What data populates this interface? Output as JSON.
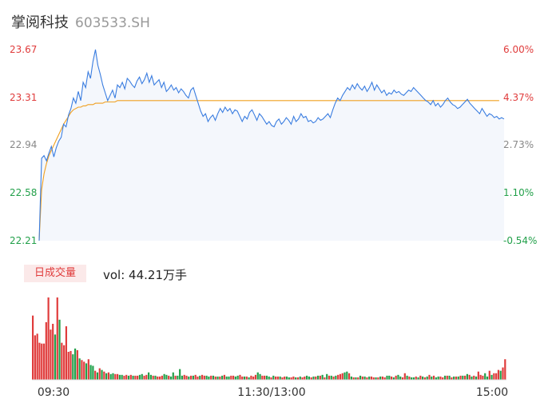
{
  "header": {
    "name": "掌阅科技",
    "code": "603533.SH"
  },
  "volume": {
    "tag": "日成交量",
    "text": "vol: 44.21万手"
  },
  "colors": {
    "price": "#3a7de0",
    "avg": "#f0a020",
    "up": "#e03c3c",
    "down": "#22a04a",
    "area": "#f4f7fc"
  },
  "chart_data": [
    {
      "type": "line",
      "series": [
        {
          "values": [
            22.21,
            22.84,
            22.86,
            22.82,
            22.88,
            22.93,
            22.85,
            22.92,
            22.97,
            23.0,
            23.1,
            23.08,
            23.17,
            23.22,
            23.3,
            23.26,
            23.35,
            23.28,
            23.42,
            23.38,
            23.5,
            23.45,
            23.58,
            23.67,
            23.55,
            23.48,
            23.4,
            23.34,
            23.28,
            23.32,
            23.36,
            23.3,
            23.4,
            23.38,
            23.42,
            23.37,
            23.45,
            23.43,
            23.4,
            23.38,
            23.43,
            23.46,
            23.41,
            23.44,
            23.49,
            23.42,
            23.47,
            23.4,
            23.42,
            23.44,
            23.38,
            23.42,
            23.35,
            23.37,
            23.4,
            23.36,
            23.38,
            23.34,
            23.37,
            23.35,
            23.32,
            23.3,
            23.36,
            23.38,
            23.32,
            23.26,
            23.2,
            23.16,
            23.18,
            23.12,
            23.15,
            23.17,
            23.13,
            23.18,
            23.22,
            23.19,
            23.23,
            23.2,
            23.22,
            23.18,
            23.21,
            23.2,
            23.16,
            23.12,
            23.16,
            23.14,
            23.19,
            23.21,
            23.17,
            23.13,
            23.18,
            23.16,
            23.13,
            23.1,
            23.12,
            23.09,
            23.08,
            23.12,
            23.14,
            23.1,
            23.12,
            23.15,
            23.13,
            23.1,
            23.16,
            23.12,
            23.14,
            23.18,
            23.15,
            23.16,
            23.12,
            23.13,
            23.11,
            23.12,
            23.15,
            23.13,
            23.14,
            23.16,
            23.18,
            23.15,
            23.21,
            23.26,
            23.3,
            23.28,
            23.32,
            23.35,
            23.38,
            23.36,
            23.4,
            23.37,
            23.41,
            23.38,
            23.36,
            23.39,
            23.35,
            23.38,
            23.42,
            23.36,
            23.4,
            23.37,
            23.34,
            23.36,
            23.32,
            23.34,
            23.33,
            23.36,
            23.34,
            23.35,
            23.33,
            23.32,
            23.34,
            23.36,
            23.35,
            23.38,
            23.36,
            23.34,
            23.32,
            23.3,
            23.28,
            23.27,
            23.25,
            23.28,
            23.24,
            23.26,
            23.23,
            23.25,
            23.28,
            23.3,
            23.27,
            23.25,
            23.24,
            23.22,
            23.23,
            23.25,
            23.27,
            23.29,
            23.26,
            23.24,
            23.22,
            23.2,
            23.18,
            23.22,
            23.19,
            23.16,
            23.18,
            23.17,
            23.15,
            23.16,
            23.14,
            23.15,
            23.14
          ]
        },
        {
          "values": [
            22.21,
            22.6,
            22.72,
            22.8,
            22.86,
            22.9,
            22.94,
            22.98,
            23.02,
            23.06,
            23.1,
            23.13,
            23.16,
            23.19,
            23.21,
            23.22,
            23.23,
            23.23,
            23.24,
            23.24,
            23.25,
            23.25,
            23.25,
            23.26,
            23.26,
            23.26,
            23.26,
            23.27,
            23.27,
            23.27,
            23.27,
            23.27,
            23.28,
            23.28,
            23.28,
            23.28,
            23.28,
            23.28,
            23.28,
            23.28,
            23.28,
            23.28,
            23.28,
            23.28,
            23.28,
            23.28,
            23.28,
            23.28,
            23.28,
            23.28,
            23.28,
            23.28,
            23.28,
            23.28,
            23.28,
            23.28,
            23.28,
            23.28,
            23.28,
            23.28,
            23.28,
            23.28,
            23.28,
            23.28,
            23.28,
            23.28,
            23.28,
            23.28,
            23.28,
            23.28,
            23.28,
            23.28,
            23.28,
            23.28,
            23.28,
            23.28,
            23.28,
            23.28,
            23.28,
            23.28,
            23.28,
            23.28,
            23.28,
            23.28,
            23.28,
            23.28,
            23.28,
            23.28,
            23.28,
            23.28,
            23.28,
            23.28,
            23.28,
            23.28,
            23.28,
            23.28,
            23.28,
            23.28,
            23.28,
            23.28,
            23.28,
            23.28,
            23.28,
            23.28,
            23.28,
            23.28,
            23.28,
            23.28,
            23.28,
            23.28,
            23.28,
            23.28,
            23.28,
            23.28,
            23.28,
            23.28,
            23.28,
            23.28,
            23.28,
            23.28,
            23.28,
            23.28,
            23.28,
            23.28,
            23.28,
            23.28,
            23.28,
            23.28,
            23.28,
            23.28,
            23.28,
            23.28,
            23.28,
            23.28,
            23.28,
            23.28,
            23.28,
            23.28,
            23.28,
            23.28,
            23.28,
            23.28,
            23.28,
            23.28,
            23.28,
            23.28,
            23.28,
            23.28,
            23.28,
            23.28,
            23.28,
            23.28,
            23.28,
            23.28,
            23.28,
            23.28,
            23.28,
            23.28,
            23.28,
            23.28,
            23.28,
            23.28,
            23.28,
            23.28,
            23.28,
            23.28,
            23.28,
            23.28,
            23.28,
            23.28,
            23.28,
            23.28,
            23.28,
            23.28,
            23.28,
            23.28,
            23.28,
            23.28,
            23.28,
            23.28,
            23.28,
            23.28,
            23.28,
            23.28,
            23.28,
            23.28,
            23.28,
            23.28,
            23.28
          ]
        }
      ],
      "ylim": [
        22.21,
        23.67
      ],
      "y_ticks_left": [
        "23.67",
        "23.31",
        "22.94",
        "22.58",
        "22.21"
      ],
      "y_ticks_right": [
        "6.00%",
        "4.37%",
        "2.73%",
        "1.10%",
        "-0.54%"
      ],
      "grid": false
    },
    {
      "type": "bar",
      "x_ticks": [
        "09:30",
        "11:30/13:00",
        "15:00"
      ],
      "values": [
        78,
        54,
        56,
        45,
        44,
        44,
        70,
        100,
        61,
        68,
        55,
        100,
        73,
        45,
        42,
        65,
        34,
        35,
        31,
        38,
        36,
        26,
        24,
        22,
        20,
        25,
        18,
        17,
        11,
        9,
        14,
        12,
        10,
        8,
        9,
        7,
        8,
        7,
        7,
        6,
        6,
        5,
        6,
        5,
        6,
        5,
        5,
        5,
        6,
        7,
        5,
        6,
        9,
        6,
        5,
        5,
        4,
        4,
        5,
        7,
        6,
        5,
        4,
        9,
        5,
        5,
        13,
        5,
        6,
        5,
        4,
        5,
        5,
        6,
        4,
        5,
        6,
        5,
        5,
        4,
        5,
        5,
        4,
        4,
        4,
        5,
        6,
        4,
        4,
        5,
        5,
        4,
        5,
        6,
        4,
        4,
        4,
        3,
        5,
        4,
        6,
        9,
        7,
        5,
        5,
        5,
        4,
        3,
        5,
        4,
        4,
        4,
        3,
        4,
        4,
        3,
        3,
        4,
        3,
        3,
        4,
        3,
        4,
        5,
        4,
        3,
        4,
        4,
        5,
        5,
        6,
        3,
        7,
        5,
        5,
        4,
        5,
        6,
        7,
        8,
        9,
        10,
        8,
        4,
        3,
        3,
        3,
        5,
        4,
        4,
        3,
        4,
        4,
        3,
        3,
        3,
        4,
        4,
        3,
        5,
        5,
        4,
        3,
        5,
        6,
        4,
        3,
        8,
        5,
        4,
        3,
        3,
        4,
        3,
        5,
        4,
        3,
        4,
        6,
        4,
        5,
        3,
        4,
        4,
        3,
        5,
        5,
        5,
        3,
        4,
        4,
        4,
        5,
        5,
        5,
        7,
        6,
        4,
        5,
        4,
        10,
        6,
        5,
        8,
        4,
        11,
        6,
        8,
        8,
        12,
        11,
        15,
        25
      ],
      "colors": [
        "up",
        "up",
        "up",
        "up",
        "up",
        "up",
        "up",
        "up",
        "up",
        "up",
        "down",
        "up",
        "down",
        "up",
        "up",
        "up",
        "up",
        "up",
        "down",
        "down",
        "up",
        "down",
        "up",
        "up",
        "down",
        "up",
        "down",
        "down",
        "up",
        "down",
        "up",
        "down",
        "up",
        "down",
        "up",
        "down",
        "down",
        "up",
        "up",
        "down",
        "down",
        "up",
        "up",
        "down",
        "up",
        "down",
        "up",
        "up",
        "down",
        "down",
        "up",
        "up",
        "down",
        "down",
        "up",
        "down",
        "up",
        "up",
        "up",
        "down",
        "down",
        "up",
        "down",
        "down",
        "up",
        "down",
        "down",
        "down",
        "up",
        "up",
        "down",
        "up",
        "down",
        "up",
        "up",
        "down",
        "up",
        "up",
        "down",
        "down",
        "up",
        "down",
        "up",
        "down",
        "up",
        "down",
        "up",
        "down",
        "down",
        "up",
        "up",
        "down",
        "down",
        "up",
        "up",
        "down",
        "up",
        "down",
        "up",
        "up",
        "up",
        "down",
        "down",
        "up",
        "up",
        "down",
        "down",
        "up",
        "down",
        "up",
        "up",
        "down",
        "up",
        "up",
        "down",
        "down",
        "up",
        "up",
        "down",
        "up",
        "down",
        "up",
        "up",
        "down",
        "down",
        "up",
        "down",
        "up",
        "down",
        "up",
        "down",
        "up",
        "down",
        "up",
        "down",
        "up",
        "down",
        "up",
        "up",
        "up",
        "down",
        "down",
        "up",
        "down",
        "up",
        "down",
        "up",
        "down",
        "up",
        "down",
        "up",
        "down",
        "up",
        "up",
        "down",
        "up",
        "down",
        "up",
        "up",
        "down",
        "down",
        "up",
        "down",
        "up",
        "down",
        "down",
        "up",
        "up",
        "down",
        "up",
        "down",
        "down",
        "up",
        "down",
        "up",
        "down",
        "up",
        "down",
        "up",
        "down",
        "up",
        "down",
        "down",
        "up",
        "up",
        "down",
        "up",
        "down",
        "up",
        "down",
        "up",
        "down",
        "up",
        "down",
        "up",
        "down",
        "up",
        "down",
        "up",
        "down",
        "up",
        "up",
        "up",
        "down",
        "down",
        "up",
        "down",
        "up",
        "up",
        "up",
        "down"
      ]
    }
  ]
}
